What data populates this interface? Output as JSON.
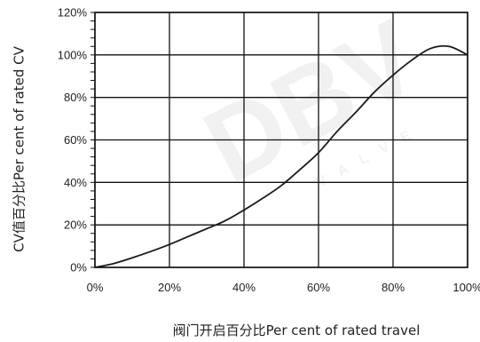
{
  "chart_data": {
    "type": "line",
    "title": "",
    "xlabel": "阀门开启百分比Per cent of rated travel",
    "ylabel": "CV值百分比Per cent of rated CV",
    "xlim": [
      0,
      100
    ],
    "ylim": [
      0,
      120
    ],
    "x_ticks": [
      "0%",
      "20%",
      "40%",
      "60%",
      "80%",
      "100%"
    ],
    "y_ticks": [
      "0%",
      "20%",
      "40%",
      "60%",
      "80%",
      "100%",
      "120%"
    ],
    "grid": true,
    "legend": "none",
    "series": [
      {
        "color": "#1a1a1a",
        "points": [
          [
            0,
            0
          ],
          [
            5,
            1.8
          ],
          [
            10,
            4.5
          ],
          [
            15,
            7.5
          ],
          [
            20,
            10.8
          ],
          [
            25,
            14.5
          ],
          [
            30,
            18.2
          ],
          [
            35,
            22
          ],
          [
            40,
            27
          ],
          [
            45,
            32.5
          ],
          [
            50,
            38.5
          ],
          [
            55,
            46
          ],
          [
            60,
            54
          ],
          [
            65,
            64
          ],
          [
            70,
            73
          ],
          [
            75,
            82.5
          ],
          [
            80,
            90.5
          ],
          [
            85,
            97.5
          ],
          [
            90,
            103
          ],
          [
            95,
            104
          ],
          [
            100,
            100
          ]
        ]
      }
    ],
    "watermark": {
      "main": "DBV",
      "sub": "V A L V E"
    }
  }
}
